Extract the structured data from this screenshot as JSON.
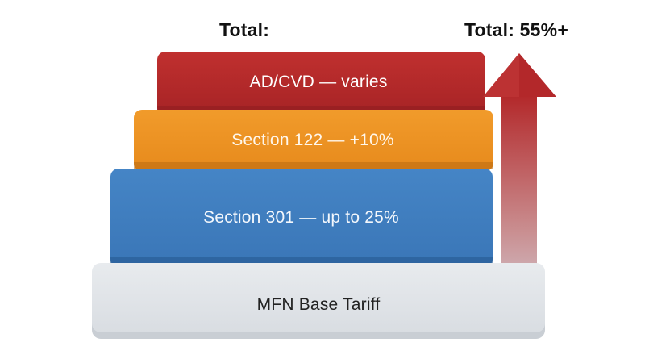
{
  "diagram": {
    "title_left": "Total:",
    "title_right": "Total: 55%+",
    "layers": [
      {
        "id": "adcvd",
        "label": "AD/CVD — varies",
        "color": "#b3282a"
      },
      {
        "id": "section_122",
        "label": "Section 122 — +10%",
        "color": "#ee9324"
      },
      {
        "id": "section_301",
        "label": "Section 301 — up to 25%",
        "color": "#3f7dc0"
      },
      {
        "id": "mfn",
        "label": "MFN Base Tariff",
        "color": "#e3e6ea"
      }
    ],
    "arrow": {
      "direction": "up",
      "color_top": "#b3282a",
      "color_bottom": "#d4dbe6"
    }
  }
}
